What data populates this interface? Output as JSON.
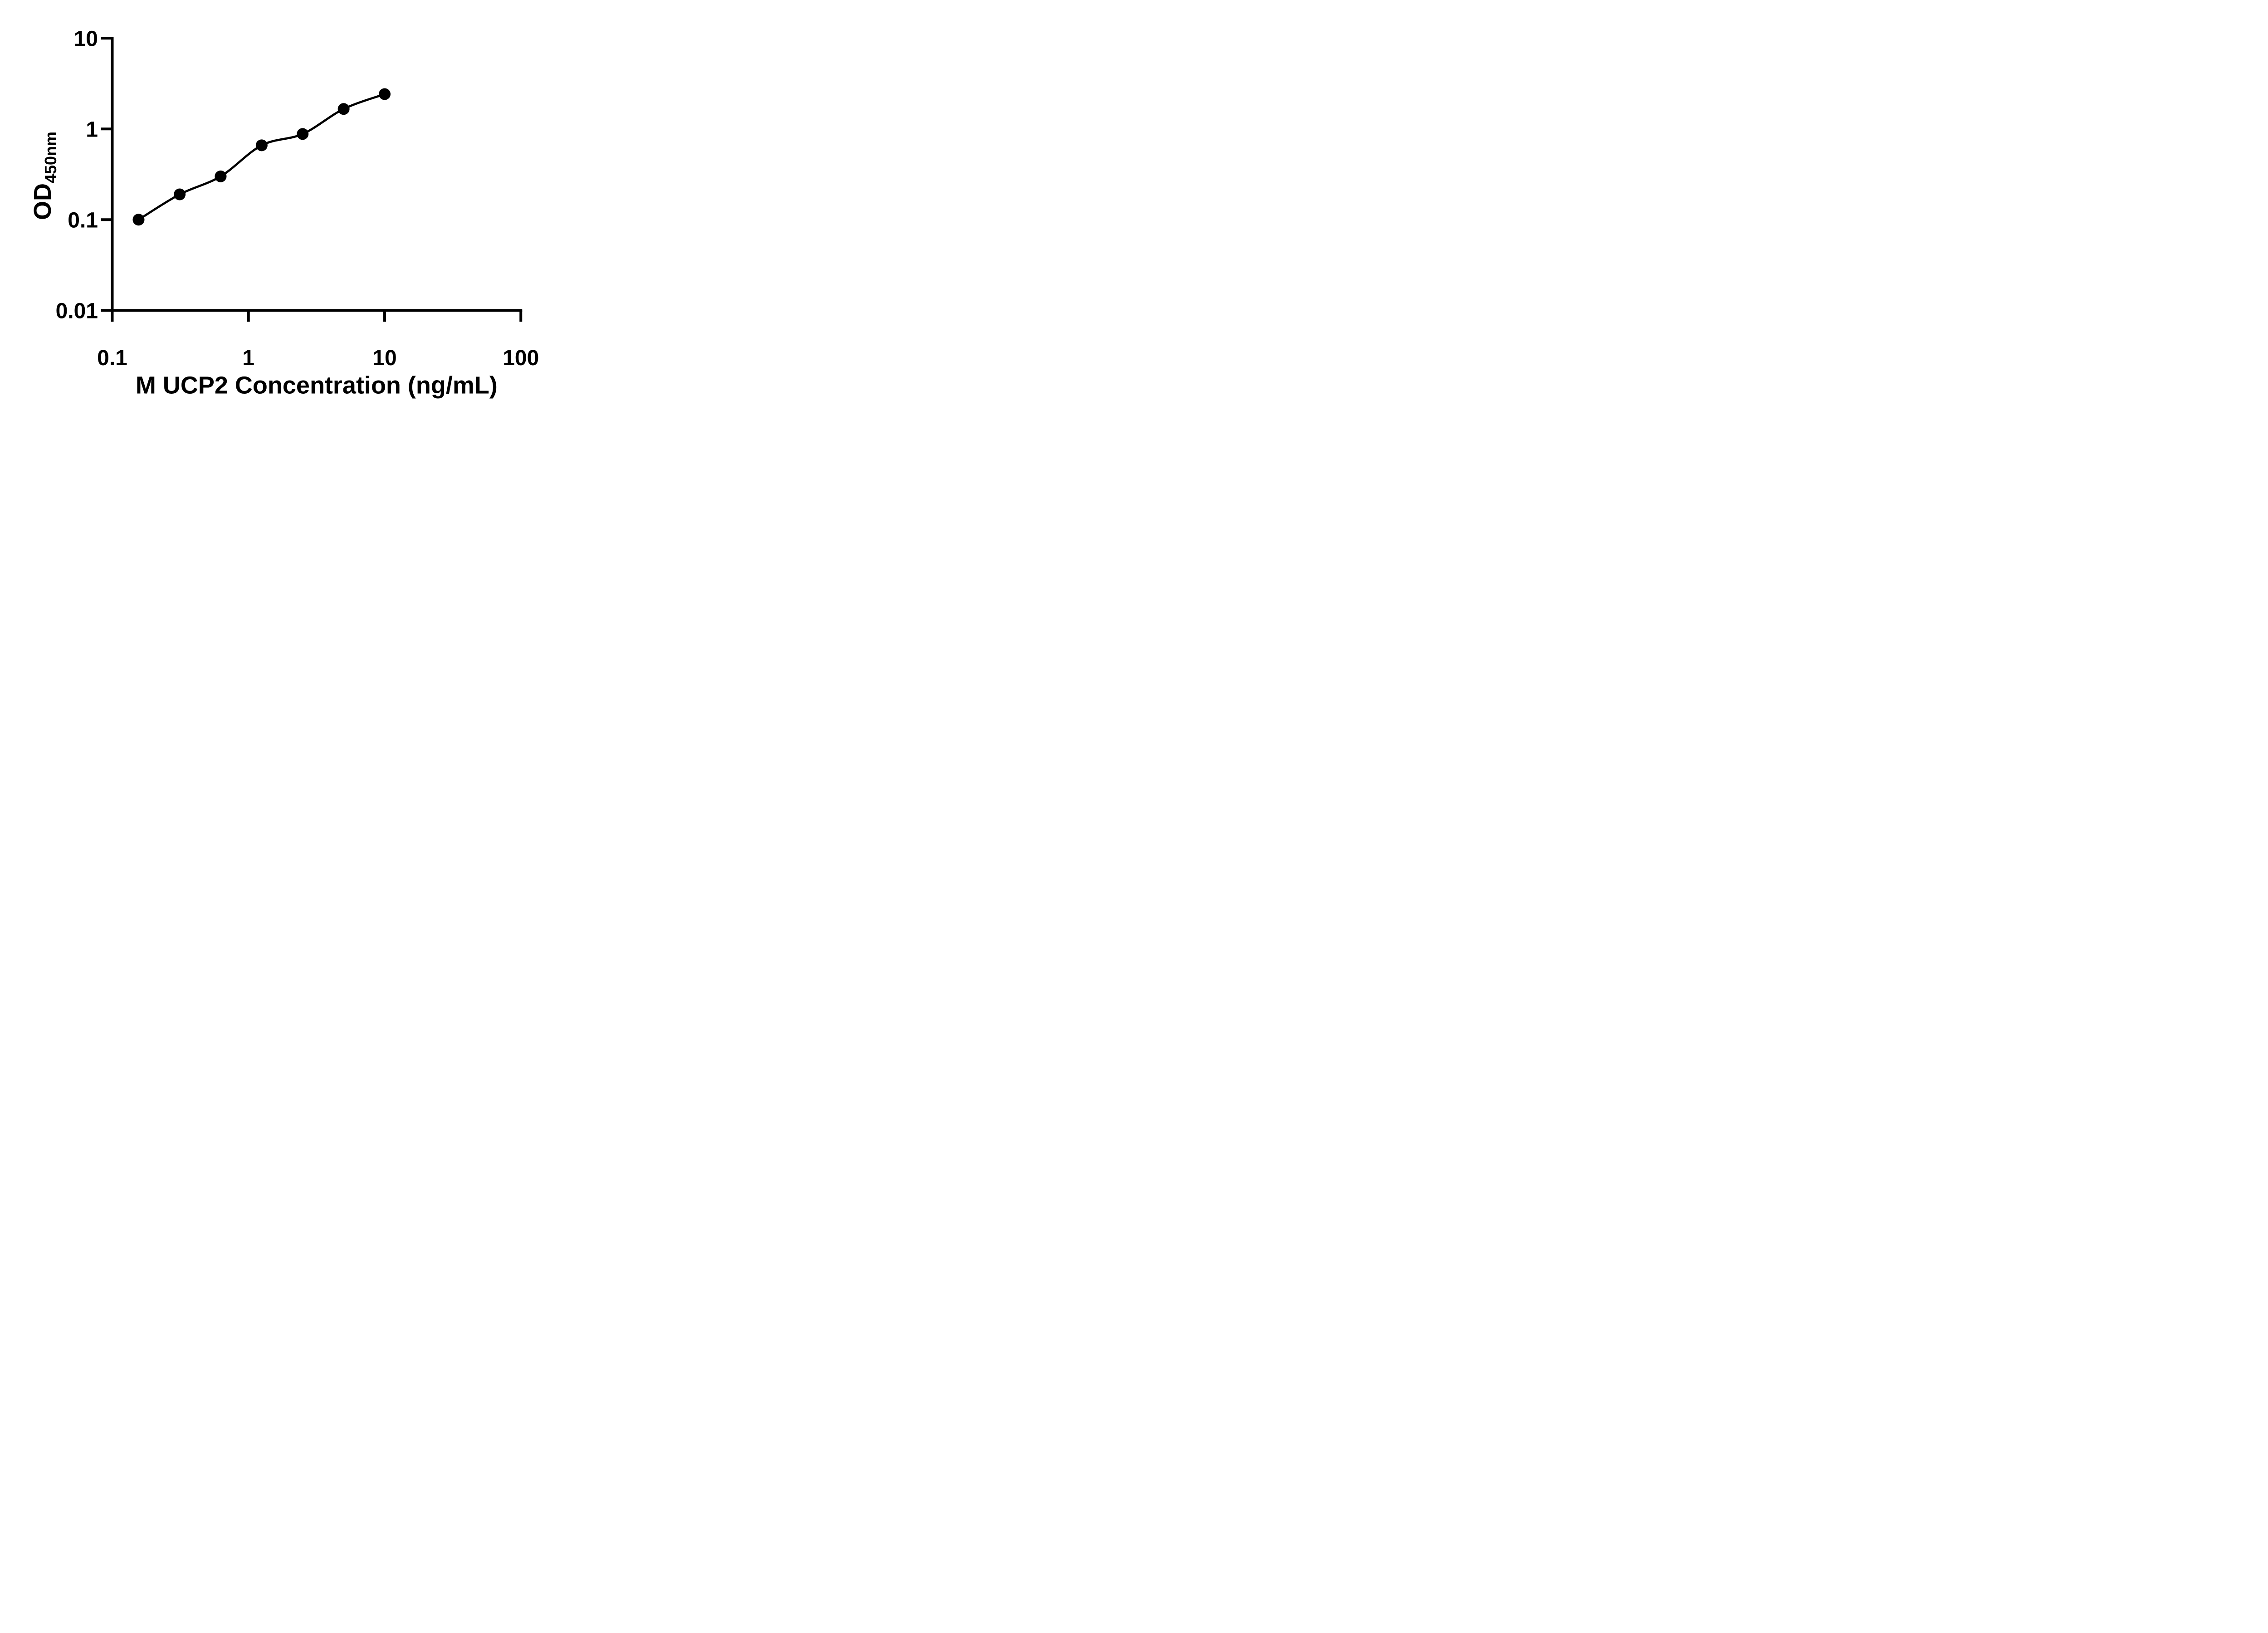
{
  "colors": {
    "ink": "#000000",
    "background": "#ffffff"
  },
  "chart_data": {
    "type": "scatter",
    "title": "",
    "xlabel": "M UCP2 Concentration (ng/mL)",
    "ylabel": "OD450nm",
    "ylabel_main": "OD",
    "ylabel_sub": "450nm",
    "x_scale": "log",
    "y_scale": "log",
    "xlim": [
      0.1,
      100
    ],
    "ylim": [
      0.01,
      10
    ],
    "x_ticks": [
      0.1,
      1,
      10,
      100
    ],
    "x_tick_labels": [
      "0.1",
      "1",
      "10",
      "100"
    ],
    "y_ticks": [
      0.01,
      0.1,
      1,
      10
    ],
    "y_tick_labels": [
      "0.01",
      "0.1",
      "1",
      "10"
    ],
    "grid": false,
    "legend": "none",
    "series": [
      {
        "marker": "filled-circle",
        "marker_color": "#000000",
        "line_color": "#000000",
        "fit_curve": true,
        "x": [
          0.156,
          0.3125,
          0.625,
          1.25,
          2.5,
          5,
          10
        ],
        "y": [
          0.1,
          0.19,
          0.3,
          0.66,
          0.88,
          1.66,
          2.42
        ]
      }
    ]
  }
}
